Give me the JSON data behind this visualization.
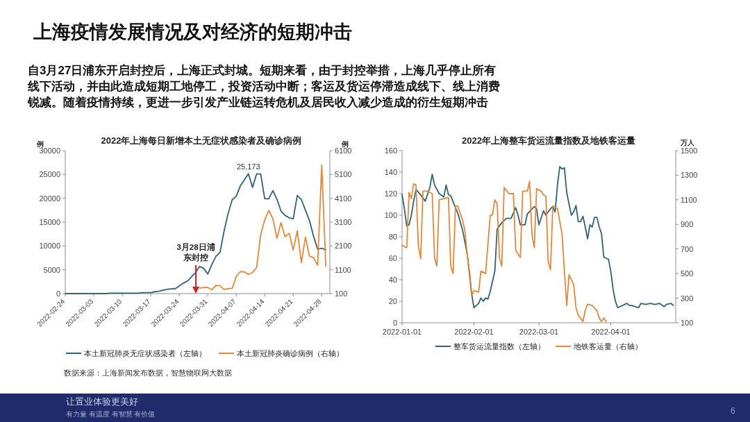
{
  "chart_data": [
    {
      "type": "line",
      "title": "2022年上海每日新增本土无症状感染者及确诊病例",
      "ylabel": "例",
      "y2label": "例",
      "annotations": [
        "上海疫情发展情况及对经济的短期冲击",
        "自3月27日浦东开启封控后，上海正式封城。短期来看，由于封控举措，上海几乎停止所有线下活动，并由此造成短期工地停工，投资活动中断；客运及货运停滞造成线下、线上消费锐减。随着疫情持续，更进一步引发产业链运转危机及居民收入减少造成的衍生短期冲击",
        "数据来源：上海新闻发布数据，智慧物联网大数据",
        "让置业体验更美好",
        "有力量 有温度 有智慧 有价值",
        "6",
        {
          "text": "25,173",
          "x": "2022-04-10",
          "y": 25173
        },
        "3月28日浦东封控"
      ],
      "xlim": [
        "2022-02-24",
        "2022-04-30"
      ],
      "xticks": [
        "2022-02-24",
        "2022-03-03",
        "2022-03-10",
        "2022-03-17",
        "2022-03-24",
        "2022-03-31",
        "2022-04-07",
        "2022-04-14",
        "2022-04-21",
        "2022-04-28"
      ],
      "ylim": [
        0,
        30000
      ],
      "yticks": [
        0,
        5000,
        10000,
        15000,
        20000,
        25000,
        30000
      ],
      "y2lim": [
        100,
        6100
      ],
      "y2ticks": [
        100,
        1100,
        2100,
        3100,
        4100,
        5100,
        6100
      ],
      "legend": "bottom",
      "series": [
        {
          "name": "本土新冠肺炎无症状感染者（左轴）",
          "color": "#2f6274",
          "x": [
            "2022-02-24",
            "2022-02-25",
            "2022-02-26",
            "2022-02-27",
            "2022-02-28",
            "2022-03-01",
            "2022-03-02",
            "2022-03-03",
            "2022-03-04",
            "2022-03-05",
            "2022-03-06",
            "2022-03-07",
            "2022-03-08",
            "2022-03-09",
            "2022-03-10",
            "2022-03-11",
            "2022-03-12",
            "2022-03-13",
            "2022-03-14",
            "2022-03-15",
            "2022-03-16",
            "2022-03-17",
            "2022-03-18",
            "2022-03-19",
            "2022-03-20",
            "2022-03-21",
            "2022-03-22",
            "2022-03-23",
            "2022-03-24",
            "2022-03-25",
            "2022-03-26",
            "2022-03-27",
            "2022-03-28",
            "2022-03-29",
            "2022-03-30",
            "2022-03-31",
            "2022-04-01",
            "2022-04-02",
            "2022-04-03",
            "2022-04-04",
            "2022-04-05",
            "2022-04-06",
            "2022-04-07",
            "2022-04-08",
            "2022-04-09",
            "2022-04-10",
            "2022-04-11",
            "2022-04-12",
            "2022-04-13",
            "2022-04-14",
            "2022-04-15",
            "2022-04-16",
            "2022-04-17",
            "2022-04-18",
            "2022-04-19",
            "2022-04-20",
            "2022-04-21",
            "2022-04-22",
            "2022-04-23",
            "2022-04-24",
            "2022-04-25",
            "2022-04-26",
            "2022-04-27",
            "2022-04-28",
            "2022-04-29"
          ],
          "values": [
            0,
            0,
            0,
            0,
            0,
            0,
            0,
            0,
            0,
            0,
            0,
            100,
            100,
            100,
            100,
            100,
            100,
            100,
            100,
            200,
            200,
            200,
            400,
            500,
            700,
            900,
            1000,
            1000,
            1600,
            2200,
            2600,
            3500,
            4400,
            5700,
            5300,
            4100,
            6100,
            7800,
            8600,
            13100,
            16800,
            19700,
            20400,
            22600,
            23900,
            25173,
            22300,
            25100,
            25100,
            19900,
            19900,
            21600,
            19800,
            17300,
            16400,
            15900,
            15700,
            20600,
            19700,
            17500,
            15300,
            12000,
            9300,
            9500,
            9200
          ]
        },
        {
          "name": "本土新冠肺炎确诊病例（右轴）",
          "color": "#e5873a",
          "axis": "y2",
          "x": [
            "2022-03-29",
            "2022-03-30",
            "2022-03-31",
            "2022-04-01",
            "2022-04-02",
            "2022-04-03",
            "2022-04-04",
            "2022-04-05",
            "2022-04-06",
            "2022-04-07",
            "2022-04-08",
            "2022-04-09",
            "2022-04-10",
            "2022-04-11",
            "2022-04-12",
            "2022-04-13",
            "2022-04-14",
            "2022-04-15",
            "2022-04-16",
            "2022-04-17",
            "2022-04-18",
            "2022-04-19",
            "2022-04-20",
            "2022-04-21",
            "2022-04-22",
            "2022-04-23",
            "2022-04-24",
            "2022-04-25",
            "2022-04-26",
            "2022-04-27",
            "2022-04-28",
            "2022-04-29"
          ],
          "values": [
            330,
            360,
            360,
            260,
            440,
            430,
            270,
            310,
            320,
            820,
            1020,
            1010,
            910,
            990,
            1190,
            2570,
            3200,
            3590,
            3240,
            2420,
            3080,
            2490,
            2630,
            1930,
            2740,
            1400,
            2470,
            1660,
            1610,
            1290,
            5490,
            1250
          ]
        }
      ]
    },
    {
      "type": "line",
      "title": "2022年上海整车货运流量指数及地铁客运量",
      "y2label": "万人",
      "xlim": [
        "2022-01-01",
        "2022-04-29"
      ],
      "xticks": [
        "2022-01-01",
        "2022-02-01",
        "2022-03-01",
        "2022-04-01"
      ],
      "ylim": [
        0,
        160
      ],
      "yticks": [
        0,
        20,
        40,
        60,
        80,
        100,
        120,
        140,
        160
      ],
      "y2lim": [
        100,
        1500
      ],
      "y2ticks": [
        100,
        300,
        500,
        700,
        900,
        1100,
        1300,
        1500
      ],
      "legend": "bottom",
      "series": [
        {
          "name": "整车货运流量指数（左轴）",
          "color": "#2f6274",
          "x": [
            "2022-01-01",
            "2022-01-02",
            "2022-01-03",
            "2022-01-04",
            "2022-01-05",
            "2022-01-06",
            "2022-01-07",
            "2022-01-09",
            "2022-01-11",
            "2022-01-13",
            "2022-01-14",
            "2022-01-15",
            "2022-01-17",
            "2022-01-19",
            "2022-01-20",
            "2022-01-21",
            "2022-01-22",
            "2022-01-24",
            "2022-01-25",
            "2022-01-27",
            "2022-01-29",
            "2022-01-30",
            "2022-01-31",
            "2022-02-01",
            "2022-02-03",
            "2022-02-04",
            "2022-02-05",
            "2022-02-06",
            "2022-02-07",
            "2022-02-08",
            "2022-02-10",
            "2022-02-11",
            "2022-02-13",
            "2022-02-15",
            "2022-02-17",
            "2022-02-19",
            "2022-02-20",
            "2022-02-21",
            "2022-02-23",
            "2022-02-24",
            "2022-02-27",
            "2022-02-28",
            "2022-03-01",
            "2022-03-03",
            "2022-03-04",
            "2022-03-06",
            "2022-03-07",
            "2022-03-08",
            "2022-03-09",
            "2022-03-10",
            "2022-03-11",
            "2022-03-12",
            "2022-03-13",
            "2022-03-15",
            "2022-03-16",
            "2022-03-17",
            "2022-03-18",
            "2022-03-19",
            "2022-03-20",
            "2022-03-21",
            "2022-03-22",
            "2022-03-23",
            "2022-03-24",
            "2022-03-25",
            "2022-03-26",
            "2022-03-27",
            "2022-03-28",
            "2022-03-29",
            "2022-03-31",
            "2022-04-01",
            "2022-04-02",
            "2022-04-03",
            "2022-04-04",
            "2022-04-06",
            "2022-04-07",
            "2022-04-08",
            "2022-04-09",
            "2022-04-10",
            "2022-04-13",
            "2022-04-14",
            "2022-04-16",
            "2022-04-18",
            "2022-04-20",
            "2022-04-22",
            "2022-04-24",
            "2022-04-25",
            "2022-04-27",
            "2022-04-28"
          ],
          "values": [
            119,
            106,
            90,
            91,
            100,
            113,
            124,
            119,
            113,
            126,
            138,
            128,
            120,
            117,
            128,
            119,
            118,
            107,
            102,
            87,
            65,
            48,
            27,
            14,
            18,
            23,
            20,
            23,
            22,
            29,
            48,
            87,
            93,
            97,
            97,
            107,
            100,
            91,
            91,
            101,
            108,
            106,
            91,
            104,
            100,
            106,
            108,
            103,
            128,
            145,
            143,
            144,
            121,
            100,
            103,
            109,
            94,
            94,
            99,
            89,
            78,
            91,
            89,
            98,
            98,
            89,
            83,
            61,
            59,
            48,
            31,
            20,
            14,
            16,
            17,
            18,
            16,
            16,
            14,
            18,
            17,
            18,
            17,
            18,
            15,
            17,
            18,
            16
          ]
        },
        {
          "name": "地铁客运量（右轴）",
          "color": "#e5873a",
          "axis": "y2",
          "x": [
            "2022-01-01",
            "2022-01-03",
            "2022-01-04",
            "2022-01-05",
            "2022-01-06",
            "2022-01-07",
            "2022-01-08",
            "2022-01-09",
            "2022-01-10",
            "2022-01-12",
            "2022-01-14",
            "2022-01-15",
            "2022-01-16",
            "2022-01-17",
            "2022-01-19",
            "2022-01-21",
            "2022-01-22",
            "2022-01-23",
            "2022-01-24",
            "2022-01-25",
            "2022-01-27",
            "2022-01-28",
            "2022-01-29",
            "2022-01-31",
            "2022-02-01",
            "2022-02-03",
            "2022-02-04",
            "2022-02-05",
            "2022-02-06",
            "2022-02-08",
            "2022-02-09",
            "2022-02-10",
            "2022-02-11",
            "2022-02-12",
            "2022-02-13",
            "2022-02-14",
            "2022-02-16",
            "2022-02-18",
            "2022-02-19",
            "2022-02-21",
            "2022-02-22",
            "2022-02-24",
            "2022-02-25",
            "2022-02-26",
            "2022-02-27",
            "2022-02-28",
            "2022-03-02",
            "2022-03-03",
            "2022-03-04",
            "2022-03-05",
            "2022-03-06",
            "2022-03-07",
            "2022-03-09",
            "2022-03-11",
            "2022-03-12",
            "2022-03-13",
            "2022-03-14",
            "2022-03-16",
            "2022-03-17",
            "2022-03-18",
            "2022-03-20",
            "2022-03-21",
            "2022-03-22",
            "2022-03-24",
            "2022-03-26",
            "2022-03-27",
            "2022-03-28",
            "2022-03-29",
            "2022-03-30"
          ],
          "values": [
            730,
            710,
            1160,
            1110,
            1230,
            1220,
            730,
            620,
            1170,
            1170,
            1150,
            630,
            560,
            1100,
            1110,
            1120,
            560,
            500,
            1050,
            1050,
            940,
            860,
            670,
            320,
            360,
            350,
            520,
            510,
            500,
            970,
            980,
            1100,
            1070,
            630,
            560,
            1200,
            1150,
            1150,
            690,
            630,
            1170,
            1170,
            1250,
            820,
            710,
            1190,
            1170,
            1140,
            1130,
            600,
            530,
            1050,
            1030,
            820,
            520,
            240,
            490,
            410,
            220,
            160,
            110,
            200,
            250,
            240,
            200,
            140,
            110,
            140,
            110
          ]
        }
      ]
    }
  ]
}
